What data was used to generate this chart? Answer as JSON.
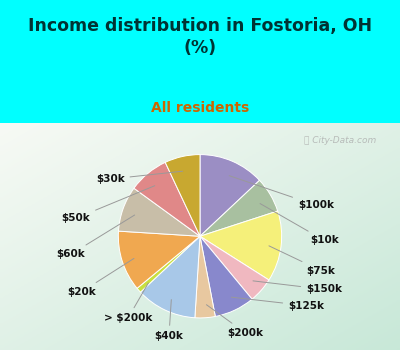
{
  "title": "Income distribution in Fostoria, OH\n(%)",
  "subtitle": "All residents",
  "bg_cyan": "#00FFFF",
  "watermark": "ⓘ City-Data.com",
  "slices": [
    {
      "label": "$100k",
      "value": 13,
      "color": "#9b8ec4"
    },
    {
      "label": "$10k",
      "value": 7,
      "color": "#a8c0a0"
    },
    {
      "label": "$75k",
      "value": 14,
      "color": "#f5f07a"
    },
    {
      "label": "$150k",
      "value": 5,
      "color": "#f0b8c0"
    },
    {
      "label": "$125k",
      "value": 8,
      "color": "#8888cc"
    },
    {
      "label": "$200k",
      "value": 4,
      "color": "#e8c8a0"
    },
    {
      "label": "$40k",
      "value": 12,
      "color": "#a8c8e8"
    },
    {
      "label": "> $200k",
      "value": 1,
      "color": "#c8e040"
    },
    {
      "label": "$20k",
      "value": 12,
      "color": "#f0a850"
    },
    {
      "label": "$60k",
      "value": 9,
      "color": "#c8bea8"
    },
    {
      "label": "$50k",
      "value": 8,
      "color": "#e08888"
    },
    {
      "label": "$30k",
      "value": 7,
      "color": "#c8a830"
    }
  ],
  "label_fontsize": 7.5,
  "title_fontsize": 12.5,
  "subtitle_fontsize": 10,
  "title_color": "#003333",
  "subtitle_color": "#cc6600"
}
